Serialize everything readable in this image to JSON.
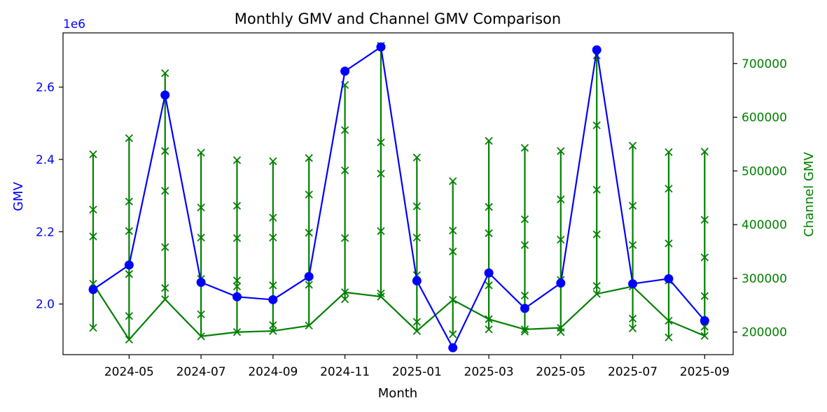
{
  "chart_data": {
    "type": "line",
    "title": "Monthly GMV and Channel GMV Comparison",
    "xlabel": "Month",
    "x_tick_labels": [
      "2024-05",
      "2024-07",
      "2024-09",
      "2024-11",
      "2025-01",
      "2025-03",
      "2025-05",
      "2025-07",
      "2025-09"
    ],
    "x": [
      "2024-04",
      "2024-05",
      "2024-06",
      "2024-07",
      "2024-08",
      "2024-09",
      "2024-10",
      "2024-11",
      "2024-12",
      "2025-01",
      "2025-02",
      "2025-03",
      "2025-04",
      "2025-05",
      "2025-06",
      "2025-07",
      "2025-08",
      "2025-09"
    ],
    "left_axis": {
      "label": "GMV",
      "color": "#0000ff",
      "offset_text": "1e6",
      "ylim": [
        1.86,
        2.75
      ],
      "tick_values": [
        2.0,
        2.2,
        2.4,
        2.6
      ],
      "tick_labels": [
        "2.0",
        "2.2",
        "2.4",
        "2.6"
      ]
    },
    "right_axis": {
      "label": "Channel GMV",
      "color": "#008000",
      "ylim": [
        158000,
        757000
      ],
      "tick_values": [
        200000,
        300000,
        400000,
        500000,
        600000,
        700000
      ],
      "tick_labels": [
        "200000",
        "300000",
        "400000",
        "500000",
        "600000",
        "700000"
      ]
    },
    "series": [
      {
        "axis": "left",
        "color": "#0000ff",
        "marker": "circle",
        "values": [
          2.04,
          2.108,
          2.578,
          2.06,
          2.02,
          2.012,
          2.076,
          2.644,
          2.711,
          2.064,
          1.879,
          2.086,
          1.988,
          2.058,
          2.703,
          2.056,
          2.07,
          1.954
        ]
      },
      {
        "axis": "right",
        "color": "#008000",
        "marker": "x",
        "channel_values": [
          [
            208000,
            290000,
            378000,
            428000,
            531000
          ],
          [
            186000,
            230000,
            308000,
            388000,
            443000,
            561000
          ],
          [
            261000,
            282000,
            358000,
            463000,
            537000,
            682000
          ],
          [
            192000,
            233000,
            299000,
            376000,
            432000,
            534000
          ],
          [
            200000,
            285000,
            296000,
            375000,
            435000,
            520000
          ],
          [
            202000,
            213000,
            287000,
            376000,
            413000,
            518000
          ],
          [
            212000,
            288000,
            385000,
            456000,
            524000
          ],
          [
            261000,
            274000,
            375000,
            501000,
            576000,
            660000
          ],
          [
            266000,
            272000,
            388000,
            495000,
            553000,
            733000
          ],
          [
            202000,
            219000,
            306000,
            376000,
            434000,
            525000
          ],
          [
            196000,
            260000,
            350000,
            389000,
            481000
          ],
          [
            205000,
            224000,
            287000,
            384000,
            433000,
            556000
          ],
          [
            201000,
            205000,
            268000,
            362000,
            410000,
            543000
          ],
          [
            200000,
            208000,
            297000,
            372000,
            447000,
            537000
          ],
          [
            271000,
            286000,
            382000,
            465000,
            585000,
            715000
          ],
          [
            207000,
            225000,
            285000,
            362000,
            435000,
            547000
          ],
          [
            190000,
            221000,
            296000,
            365000,
            467000,
            535000
          ],
          [
            193000,
            210000,
            267000,
            339000,
            409000,
            536000
          ]
        ],
        "line_values": [
          290000,
          186000,
          261000,
          192000,
          200000,
          202000,
          212000,
          274000,
          266000,
          202000,
          260000,
          224000,
          205000,
          208000,
          271000,
          285000,
          221000,
          193000
        ]
      }
    ],
    "grid": false,
    "legend": "none"
  }
}
